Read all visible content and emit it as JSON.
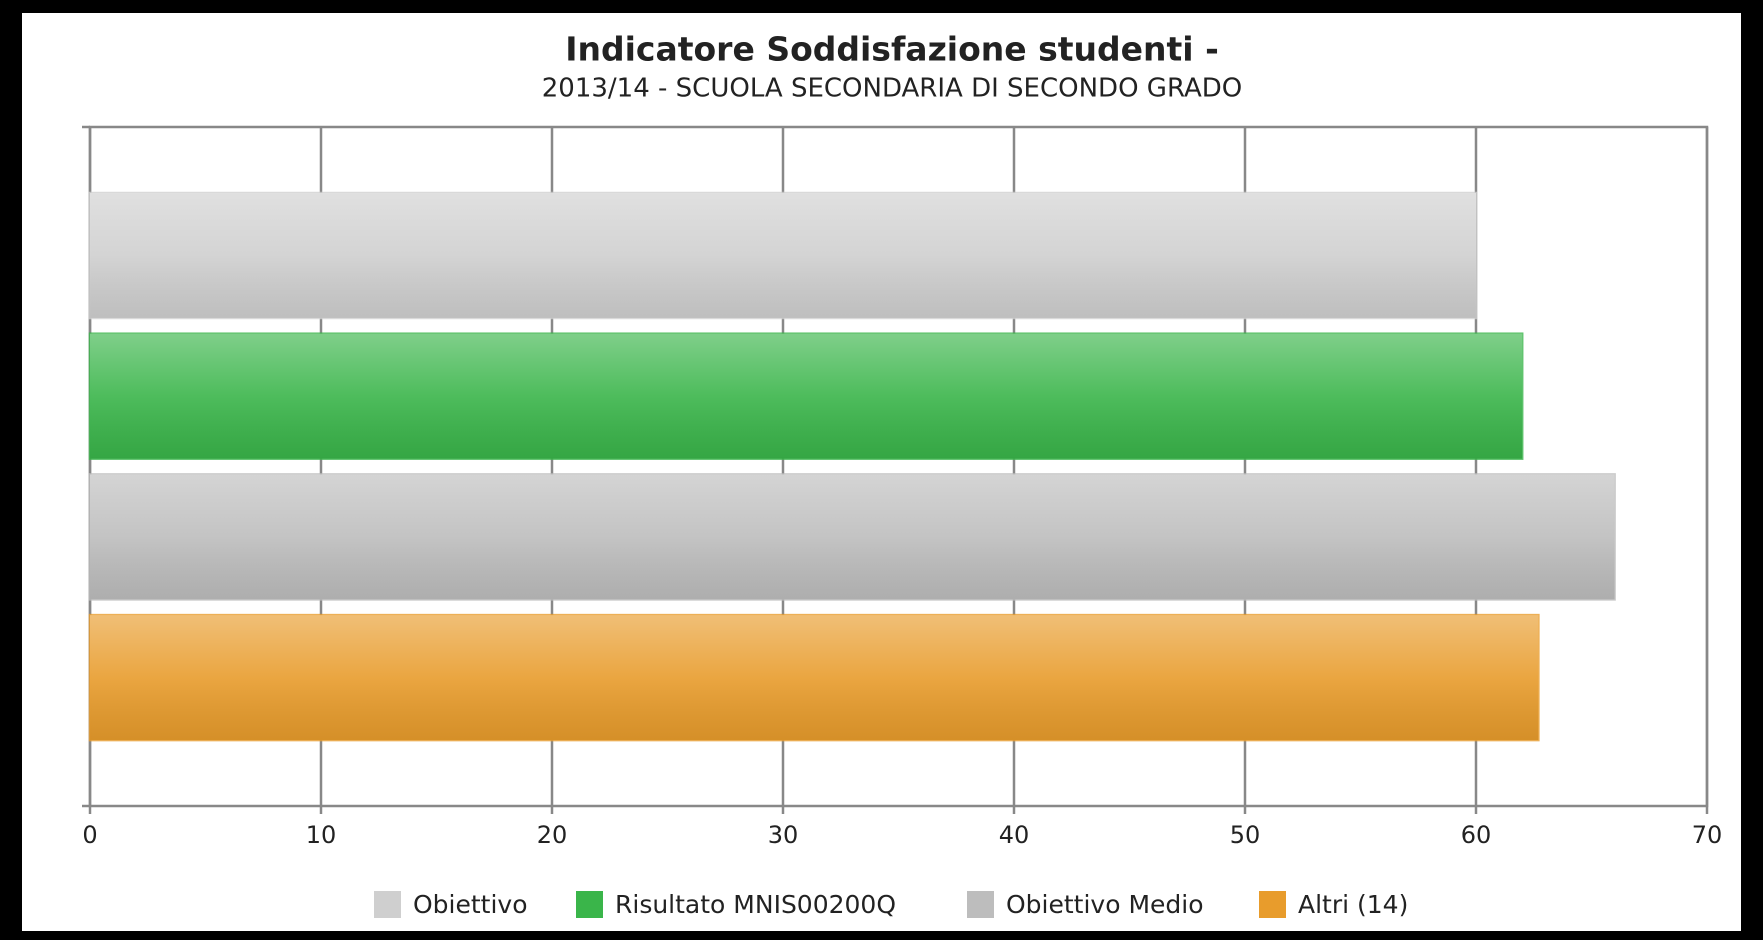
{
  "chart_data": {
    "type": "bar",
    "orientation": "horizontal",
    "title": "Indicatore Soddisfazione studenti -",
    "subtitle": "2013/14 - SCUOLA SECONDARIA DI SECONDO GRADO",
    "series": [
      {
        "name": "Obiettivo",
        "color": "#cfcfcf",
        "values": [
          60
        ]
      },
      {
        "name": "Risultato MNIS00200Q",
        "color": "#3ab54a",
        "values": [
          62
        ]
      },
      {
        "name": "Obiettivo Medio",
        "color": "#bdbdbd",
        "values": [
          66
        ]
      },
      {
        "name": "Altri (14)",
        "color": "#e89c2c",
        "values": [
          62.7
        ]
      }
    ],
    "xlim": [
      0,
      70
    ],
    "xticks": [
      0,
      10,
      20,
      30,
      40,
      50,
      60,
      70
    ],
    "grid": true,
    "legend": "bottom"
  }
}
